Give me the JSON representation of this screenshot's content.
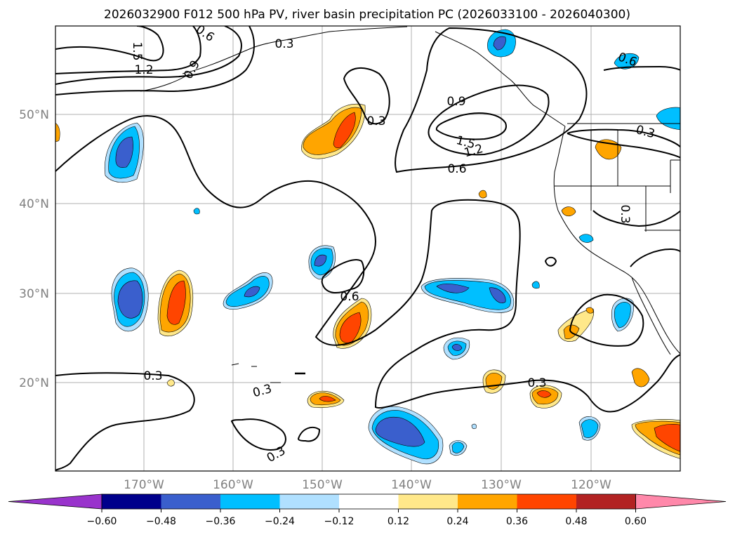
{
  "title": "2026032900 F012 500 hPa PV, river basin precipitation PC (2026033100 - 2026040300)",
  "lat_labels": [
    "50°N",
    "40°N",
    "30°N",
    "20°N"
  ],
  "lon_labels": [
    "170°W",
    "160°W",
    "150°W",
    "140°W",
    "130°W",
    "120°W"
  ],
  "colorbar": {
    "colors": [
      "#9933cc",
      "#00008b",
      "#3a5fcd",
      "#00bfff",
      "#b0e0ff",
      "#ffffff",
      "#ffe88a",
      "#ffa500",
      "#ff4500",
      "#b22222",
      "#ff88aa"
    ],
    "ticks": [
      "−0.60",
      "−0.48",
      "−0.36",
      "−0.24",
      "−0.12",
      "0.12",
      "0.24",
      "0.36",
      "0.48",
      "0.60"
    ]
  },
  "contour_labels": [
    "0.6",
    "1.5",
    "1.2",
    "0.9",
    "0.3",
    "0.9",
    "1.5",
    "1.2",
    "0.6",
    "0.3",
    "0.6",
    "0.3",
    "0.3",
    "0.6",
    "0.3",
    "0.3",
    "0.3",
    "0.3"
  ],
  "colors": {
    "orange": "#ffa500",
    "red_orange": "#ff4500",
    "light_yellow": "#ffe88a",
    "sky_blue": "#00bfff",
    "light_blue": "#b0e0ff",
    "royal_blue": "#3a5fcd",
    "dark_blue": "#00008b",
    "grid": "#b0b0b0",
    "tick_label": "#808080"
  }
}
